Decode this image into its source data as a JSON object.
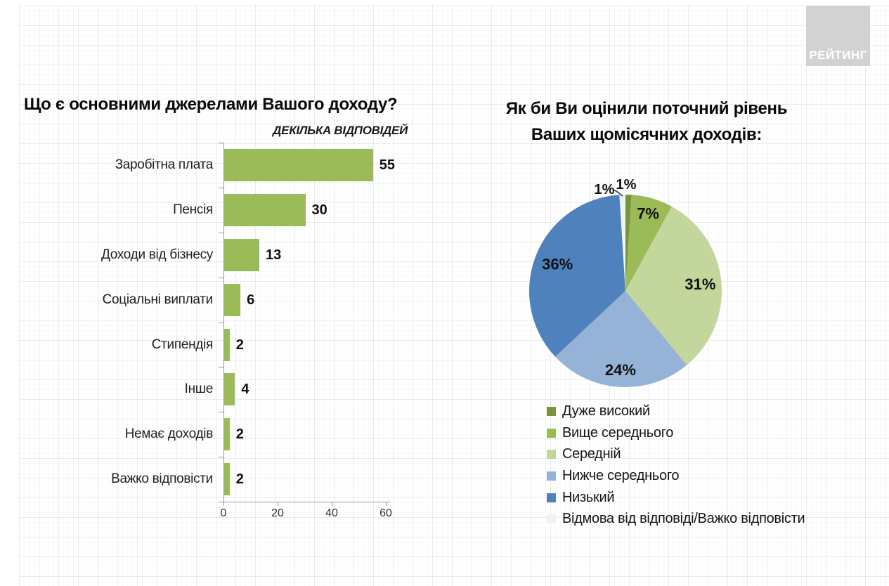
{
  "logo": {
    "label": "РЕЙТИНГ"
  },
  "chart_data": [
    {
      "type": "bar",
      "orientation": "horizontal",
      "title": "Що є основними джерелами Вашого доходу?",
      "subtitle": "ДЕКІЛЬКА ВІДПОВІДЕЙ",
      "categories": [
        "Заробітна плата",
        "Пенсія",
        "Доходи від бізнесу",
        "Соціальні виплати",
        "Стипендія",
        "Інше",
        "Немає доходів",
        "Важко відповісти"
      ],
      "values": [
        55,
        30,
        13,
        6,
        2,
        4,
        2,
        2
      ],
      "bar_color": "#9bbb59",
      "xlim": [
        0,
        60
      ],
      "x_ticks": [
        0,
        20,
        40,
        60
      ],
      "grid": false,
      "value_labels": true,
      "axis_color": "#9a9a9a"
    },
    {
      "type": "pie",
      "title_line1": "Як би Ви оцінили поточний рівень",
      "title_line2": "Ваших щомісячних доходів:",
      "start_angle_deg": 0,
      "direction": "clockwise",
      "data_label_format": "{value}%",
      "legend_position": "bottom-left",
      "slices": [
        {
          "label": "Дуже високий",
          "value": 1,
          "color": "#77933c",
          "label_outside": true
        },
        {
          "label": "Вище середнього",
          "value": 7,
          "color": "#9bbb59"
        },
        {
          "label": "Середній",
          "value": 31,
          "color": "#c3d69b"
        },
        {
          "label": "Нижче середнього",
          "value": 24,
          "color": "#95b3d7"
        },
        {
          "label": "Низький",
          "value": 36,
          "color": "#4f81bd"
        },
        {
          "label": "Відмова від відповіді/Важко відповісти",
          "value": 1,
          "color": "#f2f2f2",
          "label_outside": true,
          "leader_line": true
        }
      ]
    }
  ]
}
